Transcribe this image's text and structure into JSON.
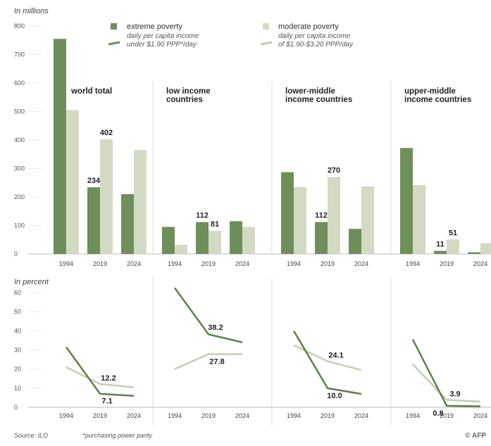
{
  "colors": {
    "extreme": "#6e8f59",
    "moderate": "#d3dac3"
  },
  "legend": {
    "extreme": {
      "label": "extreme poverty",
      "line1": "daily per capita income",
      "line2": "under $1.90 PPP*/day"
    },
    "moderate": {
      "label": "moderate poverty",
      "line1": "daily per capita income",
      "line2": "of $1.90-$3.20 PPP/day"
    }
  },
  "footer": {
    "source": "Source: ILO",
    "note": "*purchasing power parity",
    "credit": "© AFP"
  },
  "chart_data": [
    {
      "type": "bar",
      "unit_label": "In millions",
      "ylim": [
        0,
        800
      ],
      "yticks": [
        "0",
        "100",
        "200",
        "300",
        "400",
        "500",
        "600",
        "700",
        "800"
      ],
      "categories": [
        "1994",
        "2019",
        "2024"
      ],
      "panels": [
        {
          "title": [
            "world total"
          ],
          "extreme": [
            755,
            234,
            210
          ],
          "moderate": [
            505,
            402,
            365
          ],
          "labels": {
            "extreme": [
              "",
              "234",
              ""
            ],
            "moderate": [
              "",
              "402",
              ""
            ]
          }
        },
        {
          "title": [
            "low income",
            "countries"
          ],
          "extreme": [
            95,
            112,
            115
          ],
          "moderate": [
            32,
            81,
            95
          ],
          "labels": {
            "extreme": [
              "",
              "112",
              ""
            ],
            "moderate": [
              "",
              "81",
              ""
            ]
          }
        },
        {
          "title": [
            "lower-middle",
            "income countries"
          ],
          "extreme": [
            287,
            112,
            88
          ],
          "moderate": [
            235,
            270,
            237
          ],
          "labels": {
            "extreme": [
              "",
              "112",
              ""
            ],
            "moderate": [
              "",
              "270",
              ""
            ]
          }
        },
        {
          "title": [
            "upper-middle",
            "income countries"
          ],
          "extreme": [
            372,
            11,
            6
          ],
          "moderate": [
            242,
            51,
            38
          ],
          "labels": {
            "extreme": [
              "",
              "11",
              ""
            ],
            "moderate": [
              "",
              "51",
              ""
            ]
          }
        }
      ]
    },
    {
      "type": "line",
      "unit_label": "In percent",
      "ylim": [
        0,
        60
      ],
      "yticks": [
        "0",
        "10",
        "20",
        "30",
        "40",
        "50",
        "60"
      ],
      "categories": [
        "1994",
        "2019",
        "2024"
      ],
      "panels": [
        {
          "extreme": [
            31.5,
            7.1,
            6.0
          ],
          "moderate": [
            21.0,
            12.2,
            10.5
          ],
          "labels": {
            "extreme": [
              "",
              "7.1",
              ""
            ],
            "moderate": [
              "",
              "12.2",
              ""
            ]
          }
        },
        {
          "extreme": [
            62.5,
            38.2,
            34.0
          ],
          "moderate": [
            20.0,
            27.8,
            27.8
          ],
          "labels": {
            "extreme": [
              "",
              "38.2",
              ""
            ],
            "moderate": [
              "",
              "27.8",
              ""
            ]
          }
        },
        {
          "extreme": [
            40.0,
            10.0,
            7.0
          ],
          "moderate": [
            32.5,
            24.1,
            19.5
          ],
          "labels": {
            "extreme": [
              "",
              "10.0",
              ""
            ],
            "moderate": [
              "",
              "24.1",
              ""
            ]
          }
        },
        {
          "extreme": [
            35.5,
            0.8,
            0.5
          ],
          "moderate": [
            22.5,
            3.9,
            3.0
          ],
          "labels": {
            "extreme": [
              "",
              "0.8",
              ""
            ],
            "moderate": [
              "",
              "3.9",
              ""
            ]
          }
        }
      ]
    }
  ]
}
